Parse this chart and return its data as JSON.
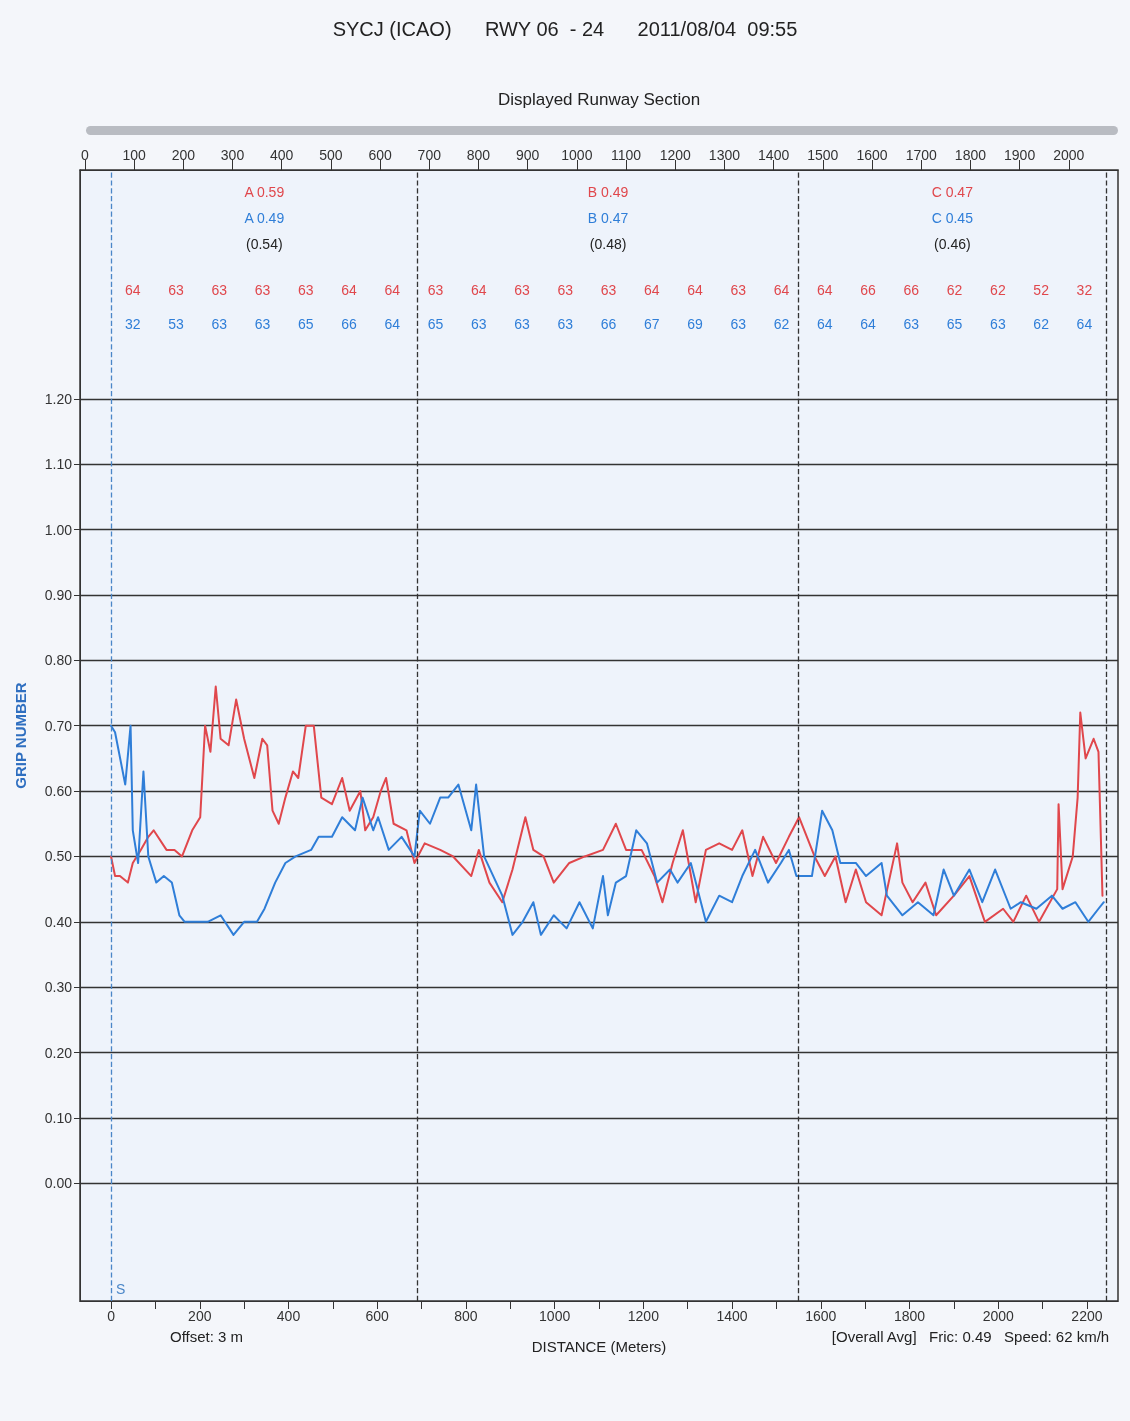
{
  "chart_data": {
    "type": "line",
    "title": "SYCJ (ICAO)      RWY 06  - 24      2011/08/04  09:55",
    "xlabel": "DISTANCE (Meters)",
    "ylabel": "GRIP NUMBER",
    "xlim": [
      -70,
      2270
    ],
    "xticks": [
      0,
      {
        "value": 100,
        "label": null
      },
      200,
      {
        "value": 300,
        "label": null
      },
      400,
      {
        "value": 500,
        "label": null
      },
      600,
      {
        "value": 700,
        "label": null
      },
      800,
      {
        "value": 900,
        "label": null
      },
      1000,
      {
        "value": 1100,
        "label": null
      },
      1200,
      {
        "value": 1300,
        "label": null
      },
      1400,
      {
        "value": 1500,
        "label": null
      },
      1600,
      {
        "value": 1700,
        "label": null
      },
      1800,
      {
        "value": 1900,
        "label": null
      },
      2000,
      {
        "value": 2100,
        "label": null
      },
      2200
    ],
    "ylim": [
      -0.18,
      1.55
    ],
    "yticks": [
      {
        "value": 0,
        "label": "0.00"
      },
      {
        "value": 0.1,
        "label": "0.10"
      },
      {
        "value": 0.2,
        "label": "0.20"
      },
      {
        "value": 0.3,
        "label": "0.30"
      },
      {
        "value": 0.4,
        "label": "0.40"
      },
      {
        "value": 0.5,
        "label": "0.50"
      },
      {
        "value": 0.6,
        "label": "0.60"
      },
      {
        "value": 0.7,
        "label": "0.70"
      },
      {
        "value": 0.8,
        "label": "0.80"
      },
      {
        "value": 0.9,
        "label": "0.90"
      },
      {
        "value": 1.0,
        "label": "1.00"
      },
      {
        "value": 1.1,
        "label": "1.10"
      },
      {
        "value": 1.2,
        "label": "1.20"
      }
    ],
    "grid": "y",
    "series": [
      {
        "color": "#e0474c",
        "x": [
          0,
          9,
          20,
          38,
          49,
          67,
          84,
          96,
          125,
          143,
          160,
          183,
          201,
          212,
          224,
          236,
          247,
          265,
          282,
          300,
          323,
          341,
          352,
          364,
          378,
          393,
          410,
          422,
          439,
          457,
          474,
          498,
          521,
          538,
          562,
          573,
          591,
          608,
          620,
          637,
          666,
          684,
          707,
          742,
          771,
          812,
          829,
          853,
          882,
          905,
          934,
          952,
          975,
          998,
          1033,
          1068,
          1109,
          1138,
          1161,
          1196,
          1225,
          1243,
          1266,
          1289,
          1318,
          1341,
          1371,
          1400,
          1423,
          1446,
          1470,
          1499,
          1528,
          1551,
          1586,
          1609,
          1633,
          1656,
          1679,
          1702,
          1737,
          1772,
          1784,
          1807,
          1836,
          1860,
          1900,
          1935,
          1970,
          2011,
          2034,
          2063,
          2092,
          2133,
          2136,
          2145,
          2168,
          2179,
          2185,
          2197,
          2215,
          2226,
          2235
        ],
        "values": [
          0.5,
          0.47,
          0.47,
          0.46,
          0.49,
          0.51,
          0.53,
          0.54,
          0.51,
          0.51,
          0.5,
          0.54,
          0.56,
          0.7,
          0.66,
          0.76,
          0.68,
          0.67,
          0.74,
          0.68,
          0.62,
          0.68,
          0.67,
          0.57,
          0.55,
          0.59,
          0.63,
          0.62,
          0.7,
          0.7,
          0.59,
          0.58,
          0.62,
          0.57,
          0.6,
          0.54,
          0.56,
          0.6,
          0.62,
          0.55,
          0.54,
          0.49,
          0.52,
          0.51,
          0.5,
          0.47,
          0.51,
          0.46,
          0.43,
          0.48,
          0.56,
          0.51,
          0.5,
          0.46,
          0.49,
          0.5,
          0.51,
          0.55,
          0.51,
          0.51,
          0.47,
          0.43,
          0.49,
          0.54,
          0.43,
          0.51,
          0.52,
          0.51,
          0.54,
          0.47,
          0.53,
          0.49,
          0.53,
          0.56,
          0.5,
          0.47,
          0.5,
          0.43,
          0.48,
          0.43,
          0.41,
          0.52,
          0.46,
          0.43,
          0.46,
          0.41,
          0.44,
          0.47,
          0.4,
          0.42,
          0.4,
          0.44,
          0.4,
          0.45,
          0.58,
          0.45,
          0.5,
          0.59,
          0.72,
          0.65,
          0.68,
          0.66,
          0.44
        ]
      },
      {
        "color": "#2f7ed8",
        "x": [
          0,
          9,
          32,
          44,
          49,
          61,
          73,
          84,
          102,
          119,
          137,
          154,
          166,
          218,
          247,
          276,
          300,
          329,
          346,
          370,
          393,
          416,
          451,
          468,
          498,
          521,
          550,
          567,
          591,
          602,
          626,
          655,
          684,
          696,
          719,
          742,
          760,
          783,
          812,
          823,
          841,
          882,
          905,
          928,
          952,
          969,
          998,
          1027,
          1056,
          1086,
          1109,
          1120,
          1138,
          1161,
          1184,
          1208,
          1231,
          1260,
          1277,
          1307,
          1341,
          1371,
          1400,
          1423,
          1452,
          1481,
          1510,
          1528,
          1545,
          1580,
          1603,
          1626,
          1644,
          1679,
          1702,
          1737,
          1749,
          1784,
          1819,
          1854,
          1877,
          1900,
          1935,
          1964,
          1993,
          2028,
          2051,
          2086,
          2121,
          2145,
          2174,
          2203,
          2226,
          2238
        ],
        "values": [
          0.7,
          0.69,
          0.61,
          0.7,
          0.54,
          0.49,
          0.63,
          0.5,
          0.46,
          0.47,
          0.46,
          0.41,
          0.4,
          0.4,
          0.41,
          0.38,
          0.4,
          0.4,
          0.42,
          0.46,
          0.49,
          0.5,
          0.51,
          0.53,
          0.53,
          0.56,
          0.54,
          0.59,
          0.54,
          0.56,
          0.51,
          0.53,
          0.5,
          0.57,
          0.55,
          0.59,
          0.59,
          0.61,
          0.54,
          0.61,
          0.5,
          0.44,
          0.38,
          0.4,
          0.43,
          0.38,
          0.41,
          0.39,
          0.43,
          0.39,
          0.47,
          0.41,
          0.46,
          0.47,
          0.54,
          0.52,
          0.46,
          0.48,
          0.46,
          0.49,
          0.4,
          0.44,
          0.43,
          0.47,
          0.51,
          0.46,
          0.49,
          0.51,
          0.47,
          0.47,
          0.57,
          0.54,
          0.49,
          0.49,
          0.47,
          0.49,
          0.44,
          0.41,
          0.43,
          0.41,
          0.48,
          0.44,
          0.48,
          0.43,
          0.48,
          0.42,
          0.43,
          0.42,
          0.44,
          0.42,
          0.43,
          0.4,
          0.42,
          0.43
        ]
      }
    ],
    "ref_lines": [
      {
        "axis": "x",
        "value": 0,
        "label": "S",
        "color": "#4a86c8",
        "line_style": "dashed"
      },
      {
        "axis": "x",
        "value": 691,
        "color": "#333333",
        "line_style": "dashed"
      },
      {
        "axis": "x",
        "value": 1550,
        "color": "#333333",
        "line_style": "dashed"
      },
      {
        "axis": "x",
        "value": 2243,
        "color": "#333333",
        "line_style": "dashed"
      }
    ],
    "annotations": [
      "Offset: 3 m",
      "[Overall Avg]   Fric: 0.49   Speed: 62 km/h",
      "A 0.59",
      "A 0.49",
      "(0.54)",
      "B 0.49",
      "B 0.47",
      "(0.48)",
      "C 0.47",
      "C 0.45",
      "(0.46)",
      "64",
      "32",
      "63",
      "53",
      "63",
      "63",
      "63",
      "63",
      "63",
      "65",
      "64",
      "66",
      "64",
      "64",
      "63",
      "65",
      "64",
      "63",
      "63",
      "63",
      "63",
      "63",
      "63",
      "66",
      "64",
      "67",
      "64",
      "69",
      "63",
      "63",
      "64",
      "62",
      "64",
      "64",
      "66",
      "64",
      "66",
      "63",
      "62",
      "65",
      "62",
      "63",
      "52",
      "62",
      "32",
      "64"
    ],
    "x2label": "Displayed Runway Section",
    "x2lim": [
      -10,
      2100
    ],
    "x2ticks": [
      0,
      100,
      200,
      300,
      400,
      500,
      600,
      700,
      800,
      900,
      1000,
      1100,
      1200,
      1300,
      1400,
      1500,
      1600,
      1700,
      1800,
      1900,
      2000
    ]
  }
}
